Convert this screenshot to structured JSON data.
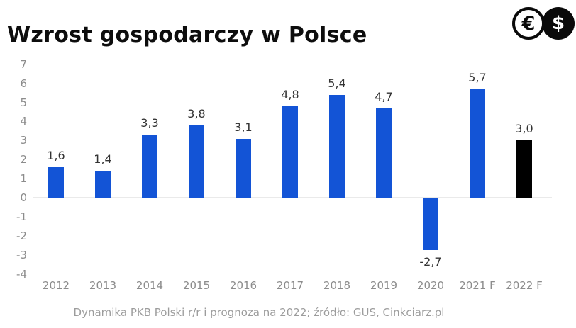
{
  "header": {
    "title": "Wzrost gospodarczy w Polsce",
    "euro_icon_symbol": "€",
    "dollar_icon_symbol": "$"
  },
  "chart_data": {
    "type": "bar",
    "title": "Wzrost gospodarczy w Polsce",
    "categories": [
      "2012",
      "2013",
      "2014",
      "2015",
      "2016",
      "2017",
      "2018",
      "2019",
      "2020",
      "2021 F",
      "2022 F"
    ],
    "values": [
      1.6,
      1.4,
      3.3,
      3.8,
      3.1,
      4.8,
      5.4,
      4.7,
      -2.7,
      5.7,
      3.0
    ],
    "value_labels": [
      "1,6",
      "1,4",
      "3,3",
      "3,8",
      "3,1",
      "4,8",
      "5,4",
      "4,7",
      "-2,7",
      "5,7",
      "3,0"
    ],
    "bar_colors": [
      "#1354d6",
      "#1354d6",
      "#1354d6",
      "#1354d6",
      "#1354d6",
      "#1354d6",
      "#1354d6",
      "#1354d6",
      "#1354d6",
      "#1354d6",
      "#000000"
    ],
    "yticks": [
      7,
      6,
      5,
      4,
      3,
      2,
      1,
      0,
      -1,
      -2,
      -3,
      -4
    ],
    "ylim": [
      -4,
      7
    ],
    "xlabel": "",
    "ylabel": "",
    "grid": "zero-line-only",
    "legend": "none"
  },
  "caption": "Dynamika PKB Polski r/r i prognoza na 2022; źródło: GUS, Cinkciarz.pl",
  "colors": {
    "bar_blue": "#1354d6",
    "bar_forecast_black": "#000000",
    "axis_text": "#8c8c8c",
    "value_text": "#333333",
    "zero_line": "#eaeaea",
    "title_text": "#0d0d0d",
    "caption_text": "#9c9c9c",
    "icon_black": "#0a0a0a"
  }
}
